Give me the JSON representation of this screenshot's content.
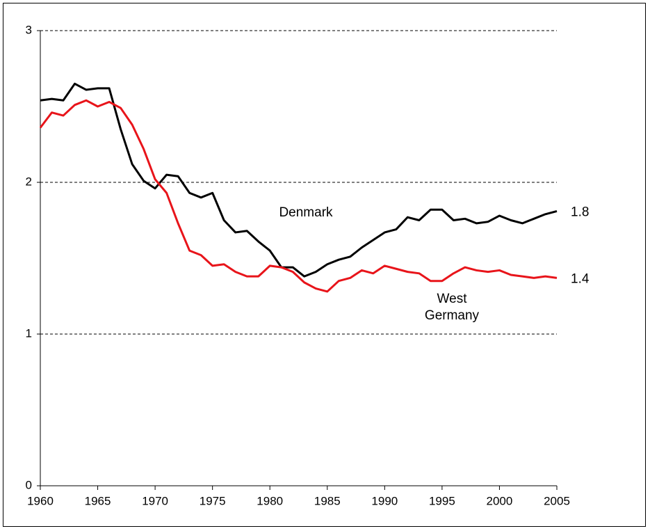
{
  "chart_data": {
    "type": "line",
    "x": [
      1960,
      1961,
      1962,
      1963,
      1964,
      1965,
      1966,
      1967,
      1968,
      1969,
      1970,
      1971,
      1972,
      1973,
      1974,
      1975,
      1976,
      1977,
      1978,
      1979,
      1980,
      1981,
      1982,
      1983,
      1984,
      1985,
      1986,
      1987,
      1988,
      1989,
      1990,
      1991,
      1992,
      1993,
      1994,
      1995,
      1996,
      1997,
      1998,
      1999,
      2000,
      2001,
      2002,
      2003,
      2004,
      2005
    ],
    "series": [
      {
        "name": "Denmark",
        "color": "#000000",
        "values": [
          2.54,
          2.55,
          2.54,
          2.65,
          2.61,
          2.62,
          2.62,
          2.35,
          2.12,
          2.01,
          1.96,
          2.05,
          2.04,
          1.93,
          1.9,
          1.93,
          1.75,
          1.67,
          1.68,
          1.61,
          1.55,
          1.44,
          1.44,
          1.38,
          1.41,
          1.46,
          1.49,
          1.51,
          1.57,
          1.62,
          1.67,
          1.69,
          1.77,
          1.75,
          1.82,
          1.82,
          1.75,
          1.76,
          1.73,
          1.74,
          1.78,
          1.75,
          1.73,
          1.76,
          1.79,
          1.81
        ],
        "value_labels": [
          null,
          null,
          null,
          null,
          null,
          null,
          null,
          null,
          null,
          null,
          null,
          null,
          null,
          null,
          null,
          null,
          null,
          null,
          null,
          null,
          null,
          null,
          null,
          null,
          null,
          null,
          null,
          null,
          null,
          null,
          null,
          null,
          null,
          null,
          null,
          null,
          null,
          null,
          null,
          null,
          null,
          null,
          null,
          null,
          null,
          "1.8"
        ]
      },
      {
        "name": "West Germany",
        "color": "#e8141a",
        "values": [
          2.36,
          2.46,
          2.44,
          2.51,
          2.54,
          2.5,
          2.53,
          2.49,
          2.38,
          2.22,
          2.02,
          1.93,
          1.73,
          1.55,
          1.52,
          1.45,
          1.46,
          1.41,
          1.38,
          1.38,
          1.45,
          1.44,
          1.41,
          1.34,
          1.3,
          1.28,
          1.35,
          1.37,
          1.42,
          1.4,
          1.45,
          1.43,
          1.41,
          1.4,
          1.35,
          1.35,
          1.4,
          1.44,
          1.42,
          1.41,
          1.42,
          1.39,
          1.38,
          1.37,
          1.38,
          1.37
        ],
        "value_labels": [
          null,
          null,
          null,
          null,
          null,
          null,
          null,
          null,
          null,
          null,
          null,
          null,
          null,
          null,
          null,
          null,
          null,
          null,
          null,
          null,
          null,
          null,
          null,
          null,
          null,
          null,
          null,
          null,
          null,
          null,
          null,
          null,
          null,
          null,
          null,
          null,
          null,
          null,
          null,
          null,
          null,
          null,
          null,
          null,
          null,
          "1.4"
        ]
      }
    ],
    "xlim": [
      1960,
      2005
    ],
    "xticks": [
      1960,
      1965,
      1970,
      1975,
      1980,
      1985,
      1990,
      1995,
      2000,
      2005
    ],
    "ylim": [
      0,
      3
    ],
    "yticks": [
      0,
      1,
      2,
      3
    ],
    "grid": true
  }
}
